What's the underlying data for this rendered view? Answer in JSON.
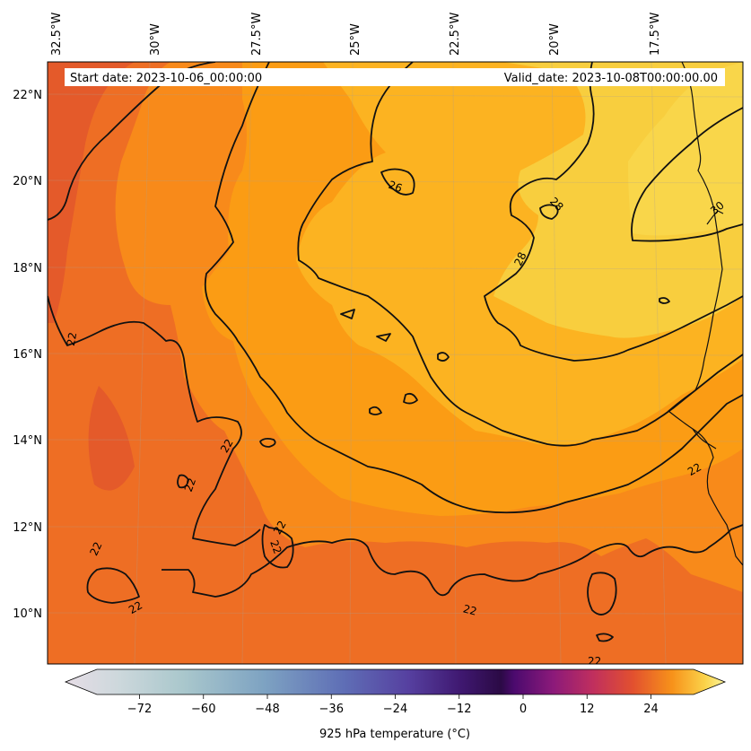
{
  "map": {
    "start_date": "Start date: 2023-10-06_00:00:00",
    "valid_date": "Valid_date: 2023-10-08T00:00:00.00",
    "longitude_labels": [
      "32.5°W",
      "30°W",
      "27.5°W",
      "25°W",
      "22.5°W",
      "20°W",
      "17.5°W"
    ],
    "latitude_labels": [
      "22°N",
      "20°N",
      "18°N",
      "16°N",
      "14°N",
      "12°N",
      "10°N"
    ],
    "contour_labels": [
      "22",
      "22",
      "22",
      "22",
      "22",
      "22",
      "22",
      "22",
      "22",
      "22",
      "26",
      "28",
      "28",
      "30"
    ],
    "fill_colors": {
      "t20": "#e45a2a",
      "t22": "#ee6e24",
      "t24": "#f88a1a",
      "t26": "#fb9c14",
      "t28": "#fcb321",
      "t30": "#f8ce3e"
    }
  },
  "colorbar": {
    "ticks": [
      "−72",
      "−60",
      "−48",
      "−36",
      "−24",
      "−12",
      "0",
      "12",
      "24"
    ],
    "min": -80,
    "max": 32,
    "label": "925 hPa temperature ($^\\circ$C)",
    "label_display": "925 hPa temperature (°C)"
  }
}
